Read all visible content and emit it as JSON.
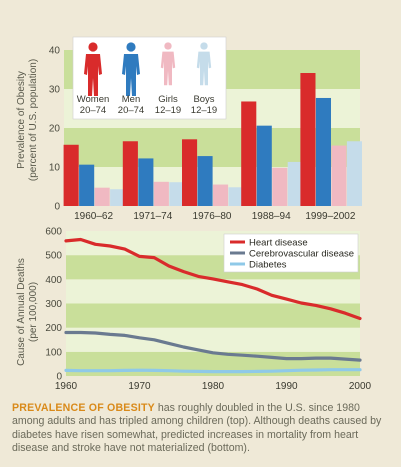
{
  "top_chart": {
    "ylabel_line1": "Prevalence of Obesity",
    "ylabel_line2": "(percent of U.S. population)",
    "y_ticks": [
      "0",
      "10",
      "20",
      "30",
      "40"
    ],
    "legend": [
      {
        "name": "Women",
        "range": "20–74",
        "color": "#d92b2b"
      },
      {
        "name": "Men",
        "range": "20–74",
        "color": "#2f7bbf"
      },
      {
        "name": "Girls",
        "range": "12–19",
        "color": "#f0b9c2"
      },
      {
        "name": "Boys",
        "range": "12–19",
        "color": "#c5dcea"
      }
    ]
  },
  "bottom_chart": {
    "ylabel_line1": "Cause of Annual Deaths",
    "ylabel_line2": "(per 100,000)",
    "y_ticks": [
      "0",
      "100",
      "200",
      "300",
      "400",
      "500",
      "600"
    ],
    "x_ticks": [
      "1960",
      "1970",
      "1980",
      "1990",
      "2000"
    ],
    "legend": [
      {
        "name": "Heart disease",
        "color": "#d92b2b"
      },
      {
        "name": "Cerebrovascular disease",
        "color": "#6a7a90"
      },
      {
        "name": "Diabetes",
        "color": "#8fc9e8"
      }
    ]
  },
  "caption": {
    "lead": "PREVALENCE OF OBESITY",
    "text": " has roughly doubled in the U.S. since 1980 among adults and has tripled among children (top). Although deaths caused by diabetes have risen somewhat, predicted increases in mortality from heart disease and stroke have not materialized (bottom)."
  },
  "chart_data": [
    {
      "type": "bar",
      "categories": [
        "1960–62",
        "1971–74",
        "1976–80",
        "1988–94",
        "1999–2002"
      ],
      "series": [
        {
          "name": "Women 20–74",
          "values": [
            15.7,
            16.6,
            17.1,
            26.8,
            34.1
          ]
        },
        {
          "name": "Men 20–74",
          "values": [
            10.6,
            12.2,
            12.8,
            20.6,
            27.7
          ]
        },
        {
          "name": "Girls 12–19",
          "values": [
            4.7,
            6.2,
            5.5,
            9.8,
            15.5
          ]
        },
        {
          "name": "Boys 12–19",
          "values": [
            4.3,
            6.1,
            4.8,
            11.3,
            16.6
          ]
        }
      ],
      "ylabel": "Prevalence of Obesity (percent of U.S. population)",
      "ylim": [
        0,
        40
      ],
      "grid": "banded"
    },
    {
      "type": "line",
      "x": [
        1960,
        1962,
        1964,
        1966,
        1968,
        1970,
        1972,
        1974,
        1976,
        1978,
        1980,
        1982,
        1984,
        1986,
        1988,
        1990,
        1992,
        1994,
        1996,
        1998,
        2000
      ],
      "series": [
        {
          "name": "Heart disease",
          "values": [
            559,
            565,
            545,
            538,
            525,
            495,
            490,
            455,
            432,
            412,
            402,
            390,
            378,
            360,
            334,
            318,
            302,
            292,
            278,
            260,
            238
          ]
        },
        {
          "name": "Cerebrovascular disease",
          "values": [
            180,
            180,
            178,
            172,
            168,
            158,
            150,
            135,
            120,
            108,
            96,
            90,
            86,
            82,
            77,
            72,
            72,
            74,
            74,
            70,
            66
          ]
        },
        {
          "name": "Diabetes",
          "values": [
            23,
            22,
            22,
            22,
            23,
            24,
            23,
            22,
            20,
            19,
            18,
            18,
            18,
            19,
            20,
            22,
            24,
            25,
            26,
            26,
            26
          ]
        }
      ],
      "ylabel": "Cause of Annual Deaths (per 100,000)",
      "xlim": [
        1960,
        2000
      ],
      "ylim": [
        0,
        600
      ],
      "legend_position": "top-right",
      "grid": "banded"
    }
  ]
}
